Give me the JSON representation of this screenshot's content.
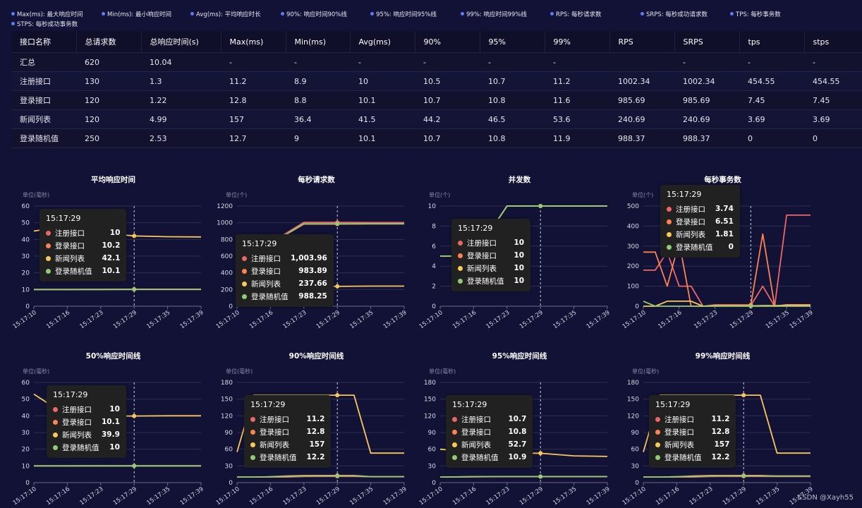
{
  "legend": [
    "Max(ms): 最大响应时间",
    "Min(ms): 最小响应时间",
    "Avg(ms): 平均响应时长",
    "90%: 响应时间90%线",
    "95%: 响应时间95%线",
    "99%: 响应时间99%线",
    "RPS: 每秒请求数",
    "SRPS: 每秒成功请求数",
    "TPS: 每秒事务数",
    "STPS: 每秒成功事务数"
  ],
  "table": {
    "headers": [
      "接口名称",
      "总请求数",
      "总响应时间(s)",
      "Max(ms)",
      "Min(ms)",
      "Avg(ms)",
      "90%",
      "95%",
      "99%",
      "RPS",
      "SRPS",
      "tps",
      "stps"
    ],
    "rows": [
      [
        "汇总",
        "620",
        "10.04",
        "-",
        "-",
        "-",
        "-",
        "-",
        "-",
        "",
        "-",
        "-",
        "-"
      ],
      [
        "注册接口",
        "130",
        "1.3",
        "11.2",
        "8.9",
        "10",
        "10.5",
        "10.7",
        "11.2",
        "1002.34",
        "1002.34",
        "454.55",
        "454.55"
      ],
      [
        "登录接口",
        "120",
        "1.22",
        "12.8",
        "8.8",
        "10.1",
        "10.7",
        "10.8",
        "11.6",
        "985.69",
        "985.69",
        "7.45",
        "7.45"
      ],
      [
        "新闻列表",
        "120",
        "4.99",
        "157",
        "36.4",
        "41.5",
        "44.2",
        "46.5",
        "53.6",
        "240.69",
        "240.69",
        "3.69",
        "3.69"
      ],
      [
        "登录随机值",
        "250",
        "2.53",
        "12.7",
        "9",
        "10.1",
        "10.7",
        "10.8",
        "11.9",
        "988.37",
        "988.37",
        "0",
        "0"
      ]
    ]
  },
  "colors": {
    "注册接口": "#ee6666",
    "登录接口": "#fc8452",
    "新闻列表": "#fac858",
    "登录随机值": "#91cc75",
    "background": "#121236"
  },
  "watermark": "CSDN @Xayh55",
  "chart_data": [
    {
      "type": "line",
      "title": "平均响应时间",
      "unit": "单位(毫秒)",
      "ylim": [
        0,
        60
      ],
      "yticks": [
        0,
        10,
        20,
        30,
        40,
        50,
        60
      ],
      "x": [
        "15:17:10",
        "15:17:16",
        "15:17:23",
        "15:17:29",
        "15:17:35",
        "15:17:39"
      ],
      "crosshair": "15:17:29",
      "series": [
        {
          "name": "注册接口",
          "values": [
            10,
            10,
            10,
            10,
            10,
            10
          ]
        },
        {
          "name": "登录接口",
          "values": [
            10,
            10,
            10.1,
            10.2,
            10.2,
            10.2
          ]
        },
        {
          "name": "新闻列表",
          "values": [
            45,
            48,
            44,
            42.1,
            41.6,
            41.5
          ]
        },
        {
          "name": "登录随机值",
          "values": [
            10,
            10,
            10,
            10.1,
            10.1,
            10.1
          ]
        }
      ],
      "tooltip": {
        "time": "15:17:29",
        "items": [
          [
            "注册接口",
            "10"
          ],
          [
            "登录接口",
            "10.2"
          ],
          [
            "新闻列表",
            "42.1"
          ],
          [
            "登录随机值",
            "10.1"
          ]
        ]
      }
    },
    {
      "type": "line",
      "title": "每秒请求数",
      "unit": "单位(个)",
      "ylim": [
        0,
        1200
      ],
      "yticks": [
        0,
        200,
        400,
        600,
        800,
        1000,
        1200
      ],
      "x": [
        "15:17:10",
        "15:17:16",
        "15:17:23",
        "15:17:29",
        "15:17:35",
        "15:17:39"
      ],
      "crosshair": "15:17:29",
      "series": [
        {
          "name": "注册接口",
          "values": [
            700,
            760,
            1003.96,
            1003.96,
            1002.34,
            1002.34
          ]
        },
        {
          "name": "登录接口",
          "values": [
            690,
            750,
            983.89,
            983.89,
            985.69,
            985.69
          ]
        },
        {
          "name": "新闻列表",
          "values": [
            120,
            180,
            237.66,
            237.66,
            240.69,
            240.69
          ]
        },
        {
          "name": "登录随机值",
          "values": [
            690,
            750,
            988.25,
            988.25,
            988.37,
            988.37
          ]
        }
      ],
      "tooltip": {
        "time": "15:17:29",
        "items": [
          [
            "注册接口",
            "1,003.96"
          ],
          [
            "登录接口",
            "983.89"
          ],
          [
            "新闻列表",
            "237.66"
          ],
          [
            "登录随机值",
            "988.25"
          ]
        ]
      }
    },
    {
      "type": "line",
      "title": "并发数",
      "unit": "单位(个)",
      "ylim": [
        0,
        10
      ],
      "yticks": [
        0,
        2,
        4,
        6,
        8,
        10
      ],
      "x": [
        "15:17:10",
        "15:17:16",
        "15:17:23",
        "15:17:29",
        "15:17:35",
        "15:17:39"
      ],
      "crosshair": "15:17:29",
      "series": [
        {
          "name": "注册接口",
          "values": [
            5,
            5,
            10,
            10,
            10,
            10
          ]
        },
        {
          "name": "登录接口",
          "values": [
            5,
            5,
            10,
            10,
            10,
            10
          ]
        },
        {
          "name": "新闻列表",
          "values": [
            5,
            5,
            10,
            10,
            10,
            10
          ]
        },
        {
          "name": "登录随机值",
          "values": [
            5,
            5,
            10,
            10,
            10,
            10
          ]
        }
      ],
      "tooltip": {
        "time": "15:17:29",
        "items": [
          [
            "注册接口",
            "10"
          ],
          [
            "登录接口",
            "10"
          ],
          [
            "新闻列表",
            "10"
          ],
          [
            "登录随机值",
            "10"
          ]
        ]
      }
    },
    {
      "type": "line",
      "title": "每秒事务数",
      "unit": "单位(个)",
      "ylim": [
        0,
        500
      ],
      "yticks": [
        0,
        100,
        200,
        300,
        400,
        500
      ],
      "x": [
        "15:17:10",
        "15:17:12",
        "15:17:14",
        "15:17:16",
        "15:17:18",
        "15:17:20",
        "15:17:23",
        "15:17:25",
        "15:17:27",
        "15:17:29",
        "15:17:31",
        "15:17:33",
        "15:17:35",
        "15:17:37",
        "15:17:39"
      ],
      "xticks": [
        "15:17:10",
        "15:17:16",
        "15:17:23",
        "15:17:29",
        "15:17:35",
        "15:17:39"
      ],
      "crosshair": "15:17:29",
      "series": [
        {
          "name": "注册接口",
          "values": [
            180,
            180,
            270,
            100,
            100,
            0,
            3.74,
            3.74,
            3.74,
            3.74,
            100,
            0,
            454.55,
            454.55,
            454.55
          ]
        },
        {
          "name": "登录接口",
          "values": [
            270,
            270,
            100,
            320,
            0,
            0,
            6.51,
            6.51,
            6.51,
            6.51,
            360,
            0,
            7.45,
            7.45,
            7.45
          ]
        },
        {
          "name": "新闻列表",
          "values": [
            0,
            0,
            25,
            25,
            25,
            0,
            1.81,
            1.81,
            1.81,
            1.81,
            3,
            3,
            3.69,
            3.69,
            3.69
          ]
        },
        {
          "name": "登录随机值",
          "values": [
            25,
            0,
            0,
            0,
            0,
            0,
            0,
            0,
            0,
            0,
            0,
            0,
            0,
            0,
            0
          ]
        }
      ],
      "tooltip": {
        "time": "15:17:29",
        "items": [
          [
            "注册接口",
            "3.74"
          ],
          [
            "登录接口",
            "6.51"
          ],
          [
            "新闻列表",
            "1.81"
          ],
          [
            "登录随机值",
            "0"
          ]
        ]
      }
    },
    {
      "type": "line",
      "title": "50%响应时间线",
      "unit": "单位(毫秒)",
      "ylim": [
        0,
        60
      ],
      "yticks": [
        0,
        10,
        20,
        30,
        40,
        50,
        60
      ],
      "x": [
        "15:17:10",
        "15:17:16",
        "15:17:23",
        "15:17:29",
        "15:17:35",
        "15:17:39"
      ],
      "crosshair": "15:17:29",
      "series": [
        {
          "name": "注册接口",
          "values": [
            10,
            10,
            10,
            10,
            10,
            10
          ]
        },
        {
          "name": "登录接口",
          "values": [
            10,
            10,
            10.1,
            10.1,
            10.1,
            10.1
          ]
        },
        {
          "name": "新闻列表",
          "values": [
            53,
            40,
            39.8,
            39.9,
            40,
            40
          ]
        },
        {
          "name": "登录随机值",
          "values": [
            10,
            10,
            10,
            10,
            10,
            10
          ]
        }
      ],
      "tooltip": {
        "time": "15:17:29",
        "items": [
          [
            "注册接口",
            "10"
          ],
          [
            "登录接口",
            "10.1"
          ],
          [
            "新闻列表",
            "39.9"
          ],
          [
            "登录随机值",
            "10"
          ]
        ]
      }
    },
    {
      "type": "line",
      "title": "90%响应时间线",
      "unit": "单位(毫秒)",
      "ylim": [
        0,
        180
      ],
      "yticks": [
        0,
        30,
        60,
        90,
        120,
        150,
        180
      ],
      "x": [
        "15:17:10",
        "15:17:13",
        "15:17:16",
        "15:17:20",
        "15:17:23",
        "15:17:26",
        "15:17:29",
        "15:17:32",
        "15:17:35",
        "15:17:37",
        "15:17:39"
      ],
      "xticks": [
        "15:17:10",
        "15:17:16",
        "15:17:23",
        "15:17:29",
        "15:17:35",
        "15:17:39"
      ],
      "crosshair": "15:17:29",
      "series": [
        {
          "name": "注册接口",
          "values": [
            10,
            10,
            10,
            10,
            11,
            11.2,
            11.2,
            11.2,
            10.5,
            10.5,
            10.5
          ]
        },
        {
          "name": "登录接口",
          "values": [
            10,
            10,
            10.5,
            12,
            12.8,
            12.8,
            12.8,
            12.8,
            10.7,
            10.7,
            10.7
          ]
        },
        {
          "name": "新闻列表",
          "values": [
            55,
            157,
            157,
            157,
            157,
            157,
            157,
            157,
            53,
            53,
            53
          ]
        },
        {
          "name": "登录随机值",
          "values": [
            10,
            10,
            10.5,
            11,
            12,
            12.2,
            12.2,
            12.2,
            10.7,
            10.7,
            10.7
          ]
        }
      ],
      "tooltip": {
        "time": "15:17:29",
        "items": [
          [
            "注册接口",
            "11.2"
          ],
          [
            "登录接口",
            "12.8"
          ],
          [
            "新闻列表",
            "157"
          ],
          [
            "登录随机值",
            "12.2"
          ]
        ]
      }
    },
    {
      "type": "line",
      "title": "95%响应时间线",
      "unit": "单位(毫秒)",
      "ylim": [
        0,
        180
      ],
      "yticks": [
        0,
        30,
        60,
        90,
        120,
        150,
        180
      ],
      "x": [
        "15:17:10",
        "15:17:16",
        "15:17:23",
        "15:17:29",
        "15:17:35",
        "15:17:39"
      ],
      "crosshair": "15:17:29",
      "series": [
        {
          "name": "注册接口",
          "values": [
            10,
            10.5,
            10.7,
            10.7,
            10.7,
            10.7
          ]
        },
        {
          "name": "登录接口",
          "values": [
            10,
            10.5,
            10.8,
            10.8,
            10.8,
            10.8
          ]
        },
        {
          "name": "新闻列表",
          "values": [
            60,
            55,
            53,
            52.7,
            48,
            47
          ]
        },
        {
          "name": "登录随机值",
          "values": [
            10,
            10.5,
            10.9,
            10.9,
            10.9,
            10.9
          ]
        }
      ],
      "tooltip": {
        "time": "15:17:29",
        "items": [
          [
            "注册接口",
            "10.7"
          ],
          [
            "登录接口",
            "10.8"
          ],
          [
            "新闻列表",
            "52.7"
          ],
          [
            "登录随机值",
            "10.9"
          ]
        ]
      }
    },
    {
      "type": "line",
      "title": "99%响应时间线",
      "unit": "单位(毫秒)",
      "ylim": [
        0,
        180
      ],
      "yticks": [
        0,
        30,
        60,
        90,
        120,
        150,
        180
      ],
      "x": [
        "15:17:10",
        "15:17:13",
        "15:17:16",
        "15:17:20",
        "15:17:23",
        "15:17:26",
        "15:17:29",
        "15:17:32",
        "15:17:35",
        "15:17:37",
        "15:17:39"
      ],
      "xticks": [
        "15:17:10",
        "15:17:16",
        "15:17:23",
        "15:17:29",
        "15:17:35",
        "15:17:39"
      ],
      "crosshair": "15:17:29",
      "series": [
        {
          "name": "注册接口",
          "values": [
            10,
            10,
            10,
            10,
            11,
            11.2,
            11.2,
            11.2,
            11,
            11,
            11
          ]
        },
        {
          "name": "登录接口",
          "values": [
            10,
            10,
            10.5,
            12,
            12.8,
            12.8,
            12.8,
            12.8,
            11.6,
            11.6,
            11.6
          ]
        },
        {
          "name": "新闻列表",
          "values": [
            55,
            157,
            157,
            157,
            157,
            157,
            157,
            157,
            53,
            53,
            53
          ]
        },
        {
          "name": "登录随机值",
          "values": [
            10,
            10,
            10.5,
            11,
            12,
            12.2,
            12.2,
            12.2,
            11.9,
            11.9,
            11.9
          ]
        }
      ],
      "tooltip": {
        "time": "15:17:29",
        "items": [
          [
            "注册接口",
            "11.2"
          ],
          [
            "登录接口",
            "12.8"
          ],
          [
            "新闻列表",
            "157"
          ],
          [
            "登录随机值",
            "12.2"
          ]
        ]
      }
    }
  ]
}
